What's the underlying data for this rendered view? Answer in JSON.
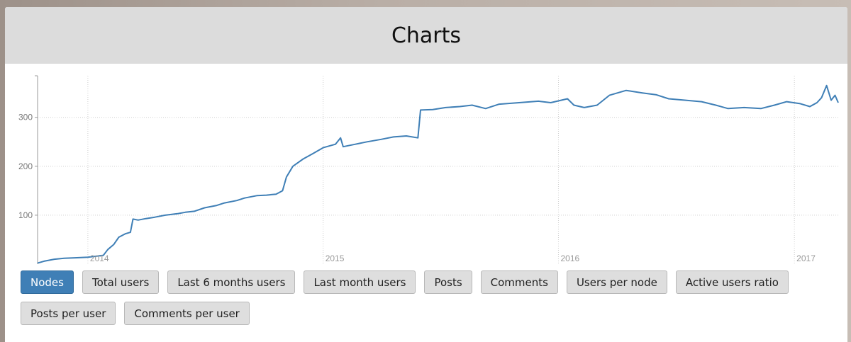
{
  "header": {
    "title": "Charts"
  },
  "buttons": [
    {
      "label": "Nodes",
      "active": true,
      "name": "nodes-button"
    },
    {
      "label": "Total users",
      "active": false,
      "name": "total-users-button"
    },
    {
      "label": "Last 6 months users",
      "active": false,
      "name": "last-6-months-users-button"
    },
    {
      "label": "Last month users",
      "active": false,
      "name": "last-month-users-button"
    },
    {
      "label": "Posts",
      "active": false,
      "name": "posts-button"
    },
    {
      "label": "Comments",
      "active": false,
      "name": "comments-button"
    },
    {
      "label": "Users per node",
      "active": false,
      "name": "users-per-node-button"
    },
    {
      "label": "Active users ratio",
      "active": false,
      "name": "active-users-ratio-button"
    },
    {
      "label": "Posts per user",
      "active": false,
      "name": "posts-per-user-button"
    },
    {
      "label": "Comments per user",
      "active": false,
      "name": "comments-per-user-button"
    }
  ],
  "colors": {
    "line": "#3f7fb6",
    "grid": "#cfcfcf",
    "active_button": "#3f7fb6",
    "header_bg": "#dcdcdc"
  },
  "chart_data": {
    "type": "line",
    "title": "",
    "xlabel": "",
    "ylabel": "",
    "x_ticks": [
      "2014",
      "2015",
      "2016",
      "2017"
    ],
    "y_ticks": [
      100,
      200,
      300
    ],
    "xlim": [
      "2013-10-15",
      "2017-03-10"
    ],
    "ylim": [
      0,
      385
    ],
    "grid": true,
    "series": [
      {
        "points": [
          [
            "2013-10-15",
            2
          ],
          [
            "2013-10-25",
            6
          ],
          [
            "2013-11-10",
            10
          ],
          [
            "2013-11-25",
            12
          ],
          [
            "2013-12-15",
            13
          ],
          [
            "2014-01-01",
            14
          ],
          [
            "2014-01-25",
            18
          ],
          [
            "2014-02-01",
            30
          ],
          [
            "2014-02-10",
            40
          ],
          [
            "2014-02-18",
            55
          ],
          [
            "2014-02-28",
            62
          ],
          [
            "2014-03-08",
            65
          ],
          [
            "2014-03-12",
            92
          ],
          [
            "2014-03-20",
            90
          ],
          [
            "2014-04-01",
            93
          ],
          [
            "2014-04-15",
            96
          ],
          [
            "2014-05-01",
            100
          ],
          [
            "2014-05-20",
            103
          ],
          [
            "2014-06-01",
            106
          ],
          [
            "2014-06-15",
            108
          ],
          [
            "2014-07-01",
            115
          ],
          [
            "2014-07-20",
            120
          ],
          [
            "2014-08-01",
            125
          ],
          [
            "2014-08-20",
            130
          ],
          [
            "2014-09-01",
            135
          ],
          [
            "2014-09-20",
            140
          ],
          [
            "2014-10-05",
            141
          ],
          [
            "2014-10-20",
            143
          ],
          [
            "2014-10-30",
            150
          ],
          [
            "2014-11-05",
            178
          ],
          [
            "2014-11-15",
            200
          ],
          [
            "2014-12-01",
            215
          ],
          [
            "2014-12-15",
            225
          ],
          [
            "2015-01-01",
            238
          ],
          [
            "2015-01-20",
            245
          ],
          [
            "2015-01-28",
            258
          ],
          [
            "2015-02-01",
            240
          ],
          [
            "2015-02-20",
            245
          ],
          [
            "2015-03-10",
            250
          ],
          [
            "2015-04-01",
            255
          ],
          [
            "2015-04-20",
            260
          ],
          [
            "2015-05-10",
            262
          ],
          [
            "2015-05-28",
            258
          ],
          [
            "2015-06-01",
            315
          ],
          [
            "2015-06-20",
            316
          ],
          [
            "2015-07-10",
            320
          ],
          [
            "2015-08-01",
            322
          ],
          [
            "2015-08-20",
            325
          ],
          [
            "2015-09-10",
            318
          ],
          [
            "2015-10-01",
            327
          ],
          [
            "2015-11-01",
            330
          ],
          [
            "2015-12-01",
            333
          ],
          [
            "2015-12-20",
            330
          ],
          [
            "2016-01-15",
            338
          ],
          [
            "2016-01-25",
            325
          ],
          [
            "2016-02-10",
            320
          ],
          [
            "2016-03-01",
            325
          ],
          [
            "2016-03-20",
            345
          ],
          [
            "2016-04-15",
            355
          ],
          [
            "2016-05-10",
            350
          ],
          [
            "2016-06-01",
            346
          ],
          [
            "2016-06-20",
            338
          ],
          [
            "2016-07-15",
            335
          ],
          [
            "2016-08-10",
            332
          ],
          [
            "2016-09-01",
            325
          ],
          [
            "2016-09-20",
            318
          ],
          [
            "2016-10-15",
            320
          ],
          [
            "2016-11-10",
            318
          ],
          [
            "2016-12-01",
            325
          ],
          [
            "2016-12-20",
            332
          ],
          [
            "2017-01-10",
            328
          ],
          [
            "2017-01-25",
            322
          ],
          [
            "2017-02-05",
            330
          ],
          [
            "2017-02-12",
            340
          ],
          [
            "2017-02-20",
            365
          ],
          [
            "2017-02-27",
            335
          ],
          [
            "2017-03-05",
            345
          ],
          [
            "2017-03-10",
            330
          ]
        ]
      }
    ]
  }
}
